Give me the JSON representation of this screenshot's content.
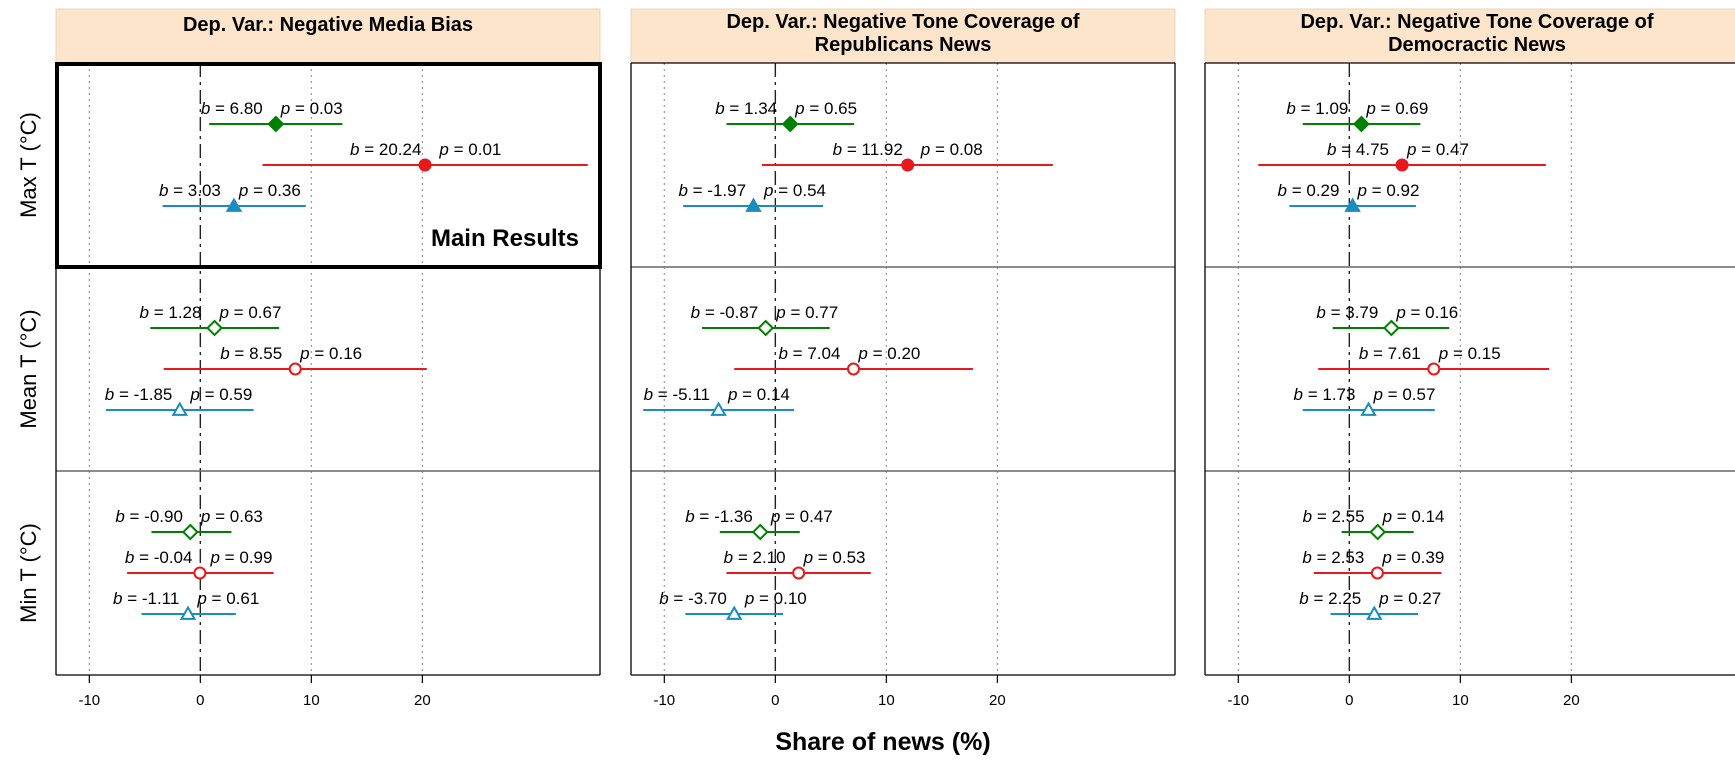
{
  "chart_data": {
    "type": "scatter",
    "subtype": "coefficient-plot",
    "xlabel": "Share of news (%)",
    "x_ticks": [
      -10,
      0,
      10,
      20
    ],
    "xlim": [
      -13,
      36
    ],
    "grid": "vertical dotted",
    "reference_line": 0,
    "columns": [
      {
        "title_lines": [
          "Dep. Var.: Negative Media Bias"
        ]
      },
      {
        "title_lines": [
          "Dep. Var.: Negative Tone Coverage of",
          "Republicans News"
        ]
      },
      {
        "title_lines": [
          "Dep. Var.: Negative Tone Coverage of",
          "Democractic News"
        ]
      }
    ],
    "rows": [
      {
        "label": "Max T (°C)",
        "filled": true
      },
      {
        "label": "Mean T (°C)",
        "filled": false
      },
      {
        "label": "Min T (°C)",
        "filled": false
      }
    ],
    "series": [
      {
        "color": "#008000",
        "marker": "diamond"
      },
      {
        "color": "#e8191c",
        "marker": "circle"
      },
      {
        "color": "#1a8cc0",
        "marker": "triangle"
      }
    ],
    "points": [
      [
        [
          {
            "b": 6.8,
            "lo": 0.8,
            "hi": 12.8,
            "b_text": "6.80",
            "p_text": "0.03"
          },
          {
            "b": 20.24,
            "lo": 5.6,
            "hi": 34.9,
            "b_text": "20.24",
            "p_text": "0.01"
          },
          {
            "b": 3.03,
            "lo": -3.4,
            "hi": 9.5,
            "b_text": "3.03",
            "p_text": "0.36"
          }
        ],
        [
          {
            "b": 1.28,
            "lo": -4.5,
            "hi": 7.1,
            "b_text": "1.28",
            "p_text": "0.67"
          },
          {
            "b": 8.55,
            "lo": -3.3,
            "hi": 20.4,
            "b_text": "8.55",
            "p_text": "0.16"
          },
          {
            "b": -1.85,
            "lo": -8.5,
            "hi": 4.8,
            "b_text": "-1.85",
            "p_text": "0.59"
          }
        ],
        [
          {
            "b": -0.9,
            "lo": -4.4,
            "hi": 2.8,
            "b_text": "-0.90",
            "p_text": "0.63"
          },
          {
            "b": -0.04,
            "lo": -6.6,
            "hi": 6.6,
            "b_text": "-0.04",
            "p_text": "0.99"
          },
          {
            "b": -1.11,
            "lo": -5.3,
            "hi": 3.2,
            "b_text": "-1.11",
            "p_text": "0.61"
          }
        ]
      ],
      [
        [
          {
            "b": 1.34,
            "lo": -4.4,
            "hi": 7.1,
            "b_text": "1.34",
            "p_text": "0.65"
          },
          {
            "b": 11.92,
            "lo": -1.2,
            "hi": 25.0,
            "b_text": "11.92",
            "p_text": "0.08"
          },
          {
            "b": -1.97,
            "lo": -8.3,
            "hi": 4.3,
            "b_text": "-1.97",
            "p_text": "0.54"
          }
        ],
        [
          {
            "b": -0.87,
            "lo": -6.6,
            "hi": 4.9,
            "b_text": "-0.87",
            "p_text": "0.77"
          },
          {
            "b": 7.04,
            "lo": -3.7,
            "hi": 17.8,
            "b_text": "7.04",
            "p_text": "0.20"
          },
          {
            "b": -5.11,
            "lo": -11.9,
            "hi": 1.7,
            "b_text": "-5.11",
            "p_text": "0.14"
          }
        ],
        [
          {
            "b": -1.36,
            "lo": -5.0,
            "hi": 2.2,
            "b_text": "-1.36",
            "p_text": "0.47"
          },
          {
            "b": 2.1,
            "lo": -4.4,
            "hi": 8.6,
            "b_text": "2.10",
            "p_text": "0.53"
          },
          {
            "b": -3.7,
            "lo": -8.1,
            "hi": 0.7,
            "b_text": "-3.70",
            "p_text": "0.10"
          }
        ]
      ],
      [
        [
          {
            "b": 1.09,
            "lo": -4.2,
            "hi": 6.4,
            "b_text": "1.09",
            "p_text": "0.69"
          },
          {
            "b": 4.75,
            "lo": -8.2,
            "hi": 17.7,
            "b_text": "4.75",
            "p_text": "0.47"
          },
          {
            "b": 0.29,
            "lo": -5.4,
            "hi": 6.0,
            "b_text": "0.29",
            "p_text": "0.92"
          }
        ],
        [
          {
            "b": 3.79,
            "lo": -1.5,
            "hi": 9.0,
            "b_text": "3.79",
            "p_text": "0.16"
          },
          {
            "b": 7.61,
            "lo": -2.8,
            "hi": 18.0,
            "b_text": "7.61",
            "p_text": "0.15"
          },
          {
            "b": 1.73,
            "lo": -4.2,
            "hi": 7.7,
            "b_text": "1.73",
            "p_text": "0.57"
          }
        ],
        [
          {
            "b": 2.55,
            "lo": -0.7,
            "hi": 5.8,
            "b_text": "2.55",
            "p_text": "0.14"
          },
          {
            "b": 2.53,
            "lo": -3.2,
            "hi": 8.3,
            "b_text": "2.53",
            "p_text": "0.39"
          },
          {
            "b": 2.25,
            "lo": -1.7,
            "hi": 6.2,
            "b_text": "2.25",
            "p_text": "0.27"
          }
        ]
      ]
    ],
    "callout": {
      "text": "Main Results",
      "column": 0,
      "row": 0
    }
  }
}
